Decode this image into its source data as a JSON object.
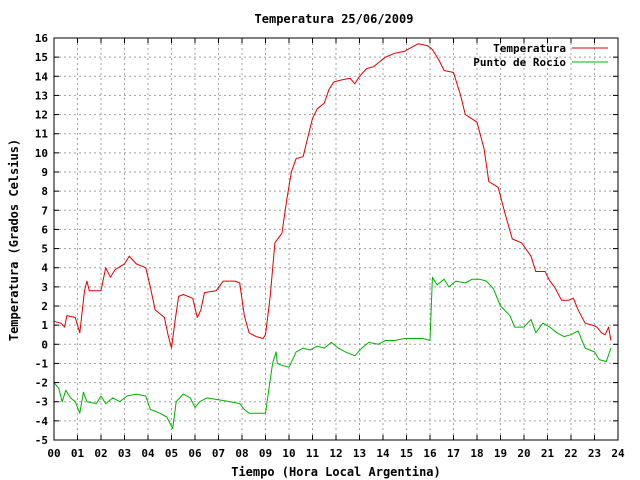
{
  "chart_data": {
    "type": "line",
    "title": "Temperatura 25/06/2009",
    "xlabel": "Tiempo (Hora Local Argentina)",
    "ylabel": "Temperatura (Grados Celsius)",
    "xlim": [
      0,
      24
    ],
    "ylim": [
      -5,
      16
    ],
    "x_ticks": [
      "00",
      "01",
      "02",
      "03",
      "04",
      "05",
      "06",
      "07",
      "08",
      "09",
      "10",
      "11",
      "12",
      "13",
      "14",
      "15",
      "16",
      "17",
      "18",
      "19",
      "20",
      "21",
      "22",
      "23",
      "24"
    ],
    "y_ticks": [
      "-5",
      "-4",
      "-3",
      "-2",
      "-1",
      "0",
      "1",
      "2",
      "3",
      "4",
      "5",
      "6",
      "7",
      "8",
      "9",
      "10",
      "11",
      "12",
      "13",
      "14",
      "15",
      "16"
    ],
    "grid": true,
    "legend_position": "top-right",
    "series": [
      {
        "name": "Temperatura",
        "color": "#e00000",
        "points": [
          [
            0.0,
            1.2
          ],
          [
            0.3,
            1.1
          ],
          [
            0.45,
            0.9
          ],
          [
            0.55,
            1.5
          ],
          [
            0.9,
            1.4
          ],
          [
            1.1,
            0.6
          ],
          [
            1.3,
            2.8
          ],
          [
            1.4,
            3.3
          ],
          [
            1.5,
            2.8
          ],
          [
            2.0,
            2.8
          ],
          [
            2.2,
            4.0
          ],
          [
            2.4,
            3.5
          ],
          [
            2.6,
            3.9
          ],
          [
            3.0,
            4.2
          ],
          [
            3.2,
            4.6
          ],
          [
            3.5,
            4.2
          ],
          [
            3.9,
            4.0
          ],
          [
            4.1,
            3.0
          ],
          [
            4.3,
            1.8
          ],
          [
            4.7,
            1.4
          ],
          [
            4.85,
            0.5
          ],
          [
            5.0,
            -0.2
          ],
          [
            5.15,
            1.2
          ],
          [
            5.3,
            2.5
          ],
          [
            5.5,
            2.6
          ],
          [
            5.9,
            2.4
          ],
          [
            6.1,
            1.4
          ],
          [
            6.25,
            1.8
          ],
          [
            6.4,
            2.7
          ],
          [
            6.9,
            2.8
          ],
          [
            7.2,
            3.3
          ],
          [
            7.7,
            3.3
          ],
          [
            7.9,
            3.2
          ],
          [
            8.1,
            1.5
          ],
          [
            8.3,
            0.6
          ],
          [
            8.6,
            0.4
          ],
          [
            8.9,
            0.3
          ],
          [
            9.0,
            0.5
          ],
          [
            9.2,
            2.5
          ],
          [
            9.4,
            5.3
          ],
          [
            9.7,
            5.8
          ],
          [
            9.9,
            7.5
          ],
          [
            10.1,
            9.0
          ],
          [
            10.3,
            9.7
          ],
          [
            10.6,
            9.8
          ],
          [
            10.8,
            10.8
          ],
          [
            11.0,
            11.8
          ],
          [
            11.2,
            12.3
          ],
          [
            11.5,
            12.6
          ],
          [
            11.7,
            13.3
          ],
          [
            11.9,
            13.7
          ],
          [
            12.2,
            13.8
          ],
          [
            12.6,
            13.9
          ],
          [
            12.8,
            13.6
          ],
          [
            13.0,
            14.0
          ],
          [
            13.3,
            14.4
          ],
          [
            13.6,
            14.5
          ],
          [
            13.8,
            14.7
          ],
          [
            14.1,
            15.0
          ],
          [
            14.5,
            15.2
          ],
          [
            14.9,
            15.3
          ],
          [
            15.2,
            15.5
          ],
          [
            15.5,
            15.7
          ],
          [
            15.9,
            15.6
          ],
          [
            16.1,
            15.4
          ],
          [
            16.4,
            14.8
          ],
          [
            16.6,
            14.3
          ],
          [
            17.0,
            14.2
          ],
          [
            17.3,
            13.0
          ],
          [
            17.5,
            12.0
          ],
          [
            18.0,
            11.6
          ],
          [
            18.3,
            10.2
          ],
          [
            18.5,
            8.5
          ],
          [
            18.9,
            8.2
          ],
          [
            19.2,
            6.8
          ],
          [
            19.5,
            5.5
          ],
          [
            19.9,
            5.3
          ],
          [
            20.3,
            4.6
          ],
          [
            20.5,
            3.8
          ],
          [
            20.9,
            3.8
          ],
          [
            21.1,
            3.3
          ],
          [
            21.3,
            3.0
          ],
          [
            21.6,
            2.3
          ],
          [
            21.9,
            2.3
          ],
          [
            22.1,
            2.4
          ],
          [
            22.3,
            1.8
          ],
          [
            22.6,
            1.1
          ],
          [
            22.9,
            1.0
          ],
          [
            23.1,
            0.9
          ],
          [
            23.3,
            0.6
          ],
          [
            23.45,
            0.5
          ],
          [
            23.6,
            0.9
          ],
          [
            23.7,
            0.2
          ]
        ]
      },
      {
        "name": "Punto de Rocío",
        "color": "#00b000",
        "points": [
          [
            0.0,
            -2.0
          ],
          [
            0.2,
            -2.3
          ],
          [
            0.35,
            -3.0
          ],
          [
            0.5,
            -2.4
          ],
          [
            0.7,
            -2.8
          ],
          [
            0.9,
            -3.0
          ],
          [
            1.1,
            -3.6
          ],
          [
            1.25,
            -2.5
          ],
          [
            1.4,
            -3.0
          ],
          [
            1.8,
            -3.1
          ],
          [
            2.0,
            -2.7
          ],
          [
            2.2,
            -3.1
          ],
          [
            2.5,
            -2.8
          ],
          [
            2.8,
            -3.0
          ],
          [
            3.1,
            -2.7
          ],
          [
            3.5,
            -2.6
          ],
          [
            3.9,
            -2.7
          ],
          [
            4.1,
            -3.4
          ],
          [
            4.5,
            -3.6
          ],
          [
            4.8,
            -3.8
          ],
          [
            5.05,
            -4.4
          ],
          [
            5.2,
            -3.0
          ],
          [
            5.5,
            -2.6
          ],
          [
            5.8,
            -2.8
          ],
          [
            6.0,
            -3.3
          ],
          [
            6.2,
            -3.0
          ],
          [
            6.5,
            -2.8
          ],
          [
            7.0,
            -2.9
          ],
          [
            7.5,
            -3.0
          ],
          [
            7.9,
            -3.1
          ],
          [
            8.1,
            -3.4
          ],
          [
            8.3,
            -3.6
          ],
          [
            8.6,
            -3.6
          ],
          [
            9.0,
            -3.6
          ],
          [
            9.15,
            -2.3
          ],
          [
            9.3,
            -1.0
          ],
          [
            9.45,
            -0.4
          ],
          [
            9.5,
            -1.0
          ],
          [
            9.7,
            -1.1
          ],
          [
            10.0,
            -1.2
          ],
          [
            10.3,
            -0.4
          ],
          [
            10.6,
            -0.2
          ],
          [
            10.9,
            -0.3
          ],
          [
            11.2,
            -0.1
          ],
          [
            11.5,
            -0.2
          ],
          [
            11.8,
            0.1
          ],
          [
            12.1,
            -0.2
          ],
          [
            12.4,
            -0.4
          ],
          [
            12.6,
            -0.5
          ],
          [
            12.8,
            -0.6
          ],
          [
            13.1,
            -0.2
          ],
          [
            13.4,
            0.1
          ],
          [
            13.8,
            0.0
          ],
          [
            14.1,
            0.2
          ],
          [
            14.5,
            0.2
          ],
          [
            14.9,
            0.3
          ],
          [
            15.3,
            0.3
          ],
          [
            15.7,
            0.3
          ],
          [
            16.0,
            0.2
          ],
          [
            16.1,
            3.5
          ],
          [
            16.3,
            3.1
          ],
          [
            16.6,
            3.4
          ],
          [
            16.8,
            3.0
          ],
          [
            17.1,
            3.3
          ],
          [
            17.5,
            3.2
          ],
          [
            17.8,
            3.4
          ],
          [
            18.1,
            3.4
          ],
          [
            18.4,
            3.3
          ],
          [
            18.7,
            2.9
          ],
          [
            19.0,
            2.0
          ],
          [
            19.4,
            1.5
          ],
          [
            19.6,
            0.9
          ],
          [
            20.0,
            0.9
          ],
          [
            20.3,
            1.3
          ],
          [
            20.5,
            0.6
          ],
          [
            20.8,
            1.1
          ],
          [
            21.1,
            0.9
          ],
          [
            21.4,
            0.6
          ],
          [
            21.7,
            0.4
          ],
          [
            22.0,
            0.5
          ],
          [
            22.3,
            0.7
          ],
          [
            22.6,
            -0.2
          ],
          [
            23.0,
            -0.4
          ],
          [
            23.2,
            -0.8
          ],
          [
            23.5,
            -0.9
          ],
          [
            23.7,
            -0.2
          ]
        ]
      }
    ]
  }
}
